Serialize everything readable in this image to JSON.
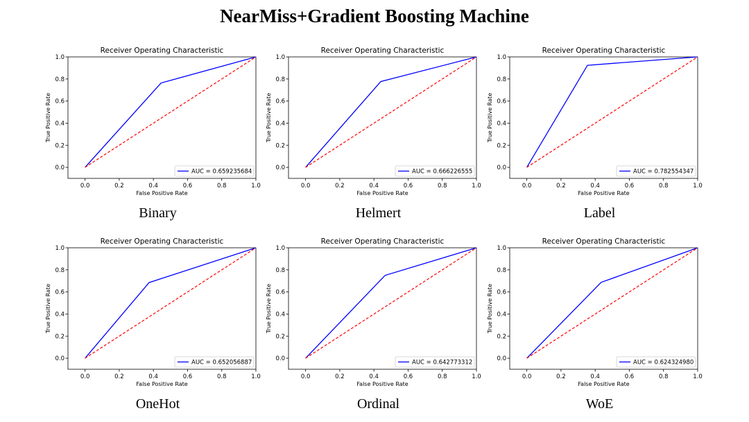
{
  "title": "NearMiss+Gradient Boosting Machine",
  "colors": {
    "roc": "#0000ff",
    "diagonal": "#ff0000"
  },
  "chart_data": [
    {
      "type": "line",
      "caption": "Binary",
      "title": "Receiver Operating Characteristic",
      "xlabel": "False Positive Rate",
      "ylabel": "True Positive Rate",
      "xlim": [
        -0.1,
        1.0
      ],
      "ylim": [
        -0.1,
        1.0
      ],
      "xticks": [
        "0.0",
        "0.2",
        "0.4",
        "0.6",
        "0.8",
        "1.0"
      ],
      "yticks": [
        "0.0",
        "0.2",
        "0.4",
        "0.6",
        "0.8",
        "1.0"
      ],
      "legend_position": "lower right",
      "series": [
        {
          "name": "AUC = 0.659235684",
          "x": [
            0,
            0.445,
            1
          ],
          "y": [
            0,
            0.764,
            1
          ]
        },
        {
          "x": [
            0,
            1
          ],
          "y": [
            0,
            1
          ],
          "style": "dashed"
        }
      ]
    },
    {
      "type": "line",
      "caption": "Helmert",
      "title": "Receiver Operating Characteristic",
      "xlabel": "False Positive Rate",
      "ylabel": "True Positive Rate",
      "xlim": [
        -0.1,
        1.0
      ],
      "ylim": [
        -0.1,
        1.0
      ],
      "xticks": [
        "0.0",
        "0.2",
        "0.4",
        "0.6",
        "0.8",
        "1.0"
      ],
      "yticks": [
        "0.0",
        "0.2",
        "0.4",
        "0.6",
        "0.8",
        "1.0"
      ],
      "legend_position": "lower right",
      "series": [
        {
          "name": "AUC = 0.666226555",
          "x": [
            0,
            0.44,
            1
          ],
          "y": [
            0,
            0.777,
            1
          ]
        },
        {
          "x": [
            0,
            1
          ],
          "y": [
            0,
            1
          ],
          "style": "dashed"
        }
      ]
    },
    {
      "type": "line",
      "caption": "Label",
      "title": "Receiver Operating Characteristic",
      "xlabel": "False Positive Rate",
      "ylabel": "True Positive Rate",
      "xlim": [
        -0.1,
        1.0
      ],
      "ylim": [
        -0.1,
        1.0
      ],
      "xticks": [
        "0.0",
        "0.2",
        "0.4",
        "0.6",
        "0.8",
        "1.0"
      ],
      "yticks": [
        "0.0",
        "0.2",
        "0.4",
        "0.6",
        "0.8",
        "1.0"
      ],
      "legend_position": "lower right",
      "series": [
        {
          "name": "AUC = 0.782554347",
          "x": [
            0,
            0.355,
            1
          ],
          "y": [
            0,
            0.924,
            1
          ]
        },
        {
          "x": [
            0,
            1
          ],
          "y": [
            0,
            1
          ],
          "style": "dashed"
        }
      ]
    },
    {
      "type": "line",
      "caption": "OneHot",
      "title": "Receiver Operating Characteristic",
      "xlabel": "False Positive Rate",
      "ylabel": "True Positive Rate",
      "xlim": [
        -0.1,
        1.0
      ],
      "ylim": [
        -0.1,
        1.0
      ],
      "xticks": [
        "0.0",
        "0.2",
        "0.4",
        "0.6",
        "0.8",
        "1.0"
      ],
      "yticks": [
        "0.0",
        "0.2",
        "0.4",
        "0.6",
        "0.8",
        "1.0"
      ],
      "legend_position": "lower right",
      "series": [
        {
          "name": "AUC = 0.652056887",
          "x": [
            0,
            0.375,
            1
          ],
          "y": [
            0,
            0.685,
            1
          ]
        },
        {
          "x": [
            0,
            1
          ],
          "y": [
            0,
            1
          ],
          "style": "dashed"
        }
      ]
    },
    {
      "type": "line",
      "caption": "Ordinal",
      "title": "Receiver Operating Characteristic",
      "xlabel": "False Positive Rate",
      "ylabel": "True Positive Rate",
      "xlim": [
        -0.1,
        1.0
      ],
      "ylim": [
        -0.1,
        1.0
      ],
      "xticks": [
        "0.0",
        "0.2",
        "0.4",
        "0.6",
        "0.8",
        "1.0"
      ],
      "yticks": [
        "0.0",
        "0.2",
        "0.4",
        "0.6",
        "0.8",
        "1.0"
      ],
      "legend_position": "lower right",
      "series": [
        {
          "name": "AUC = 0.642773312",
          "x": [
            0,
            0.465,
            1
          ],
          "y": [
            0,
            0.75,
            1
          ]
        },
        {
          "x": [
            0,
            1
          ],
          "y": [
            0,
            1
          ],
          "style": "dashed"
        }
      ]
    },
    {
      "type": "line",
      "caption": "WoE",
      "title": "Receiver Operating Characteristic",
      "xlabel": "False Positive Rate",
      "ylabel": "True Positive Rate",
      "xlim": [
        -0.1,
        1.0
      ],
      "ylim": [
        -0.1,
        1.0
      ],
      "xticks": [
        "0.0",
        "0.2",
        "0.4",
        "0.6",
        "0.8",
        "1.0"
      ],
      "yticks": [
        "0.0",
        "0.2",
        "0.4",
        "0.6",
        "0.8",
        "1.0"
      ],
      "legend_position": "lower right",
      "series": [
        {
          "name": "AUC = 0.624324980",
          "x": [
            0,
            0.435,
            1
          ],
          "y": [
            0,
            0.687,
            1
          ]
        },
        {
          "x": [
            0,
            1
          ],
          "y": [
            0,
            1
          ],
          "style": "dashed"
        }
      ]
    }
  ]
}
